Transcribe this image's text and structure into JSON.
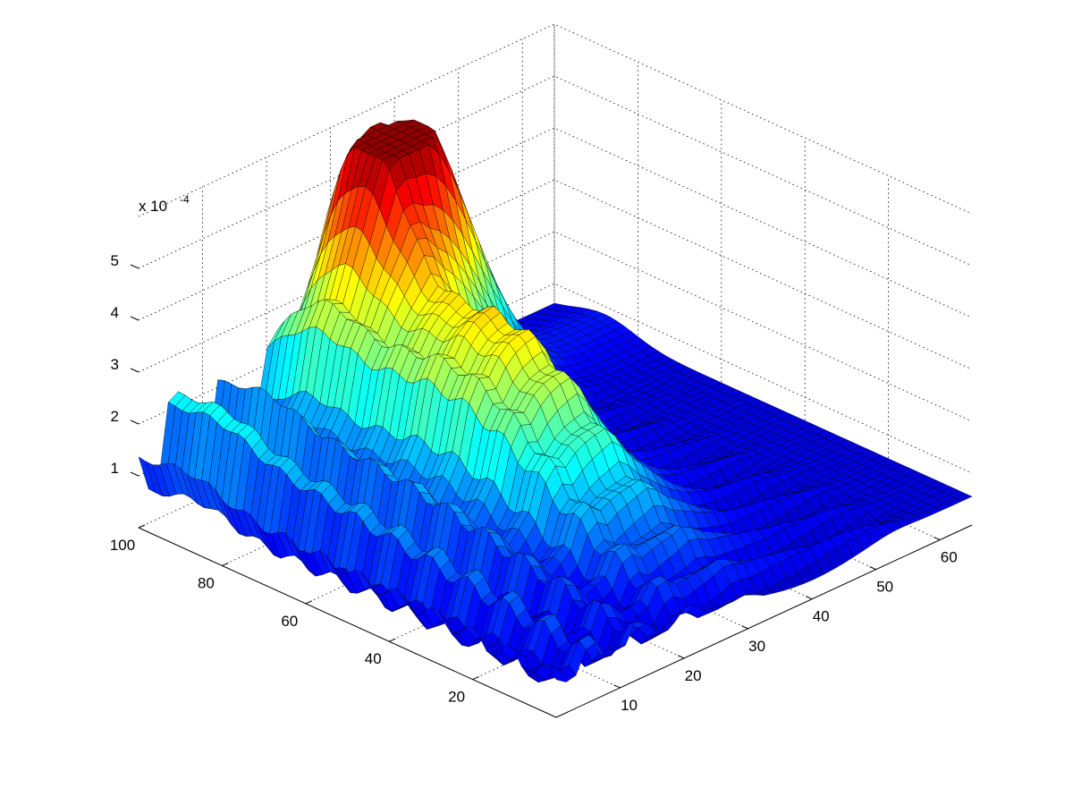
{
  "chart_data": {
    "type": "surface",
    "title": "",
    "xlabel": "",
    "ylabel": "",
    "zlabel": "",
    "z_multiplier": "x 10",
    "z_exponent": "-4",
    "x_axis": {
      "range": [
        0,
        65
      ],
      "ticks": [
        10,
        20,
        30,
        40,
        50,
        60
      ]
    },
    "y_axis": {
      "range": [
        0,
        100
      ],
      "ticks": [
        20,
        40,
        60,
        80,
        100
      ]
    },
    "z_axis": {
      "range": [
        0,
        6
      ],
      "ticks": [
        1,
        2,
        3,
        4,
        5
      ]
    },
    "grid": true,
    "colormap": "jet",
    "features": [
      {
        "description": "main peak",
        "x": 38,
        "y": 90,
        "z": 5.9
      },
      {
        "description": "secondary ridge",
        "x": 30,
        "y": 55,
        "z": 4.1
      },
      {
        "description": "oscillating peaks",
        "x": [
          10,
          6,
          3,
          1
        ],
        "y": [
          100,
          100,
          100,
          100
        ],
        "z": [
          5.2,
          4.9,
          4.7,
          4.6
        ]
      }
    ]
  }
}
